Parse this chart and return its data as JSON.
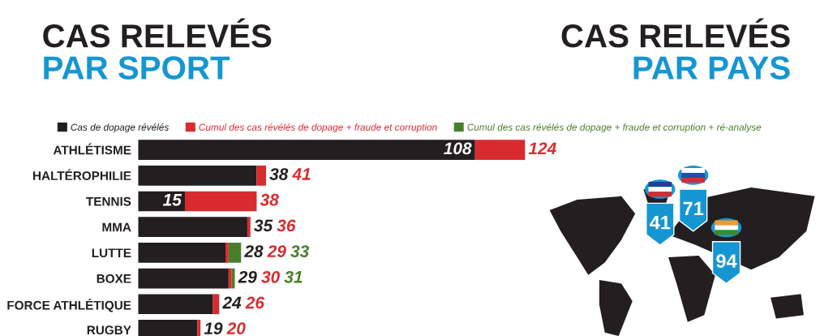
{
  "chart_data": [
    {
      "type": "bar",
      "orientation": "horizontal",
      "stacked": true,
      "title": "CAS RELEVÉS",
      "subtitle": "PAR SPORT",
      "legend": "top",
      "categories": [
        "ATHLÉTISME",
        "HALTÉROPHILIE",
        "TENNIS",
        "MMA",
        "LUTTE",
        "BOXE",
        "FORCE ATHLÉTIQUE",
        "RUGBY"
      ],
      "series": [
        {
          "name": "Cas de dopage révélés",
          "color": "#231f20",
          "values": [
            108,
            38,
            15,
            35,
            28,
            29,
            24,
            19
          ],
          "value_labels": [
            "108",
            "38",
            "15",
            "35",
            "28",
            "29",
            "24",
            "19"
          ]
        },
        {
          "name": "Cumul des cas révélés de dopage + fraude et corruption",
          "color": "#d92b2f",
          "values": [
            16,
            3,
            23,
            1,
            1,
            1,
            2,
            1
          ]
        },
        {
          "name": "Cumul des cas révélés de dopage + fraude et corruption + ré-analyse",
          "color": "#4a7f2a",
          "values": [
            null,
            null,
            null,
            null,
            4,
            1,
            null,
            null
          ]
        }
      ],
      "annotations": [
        {
          "text": "124",
          "x": 124,
          "y": "ATHLÉTISME"
        },
        {
          "text": "41",
          "x": 41,
          "y": "HALTÉROPHILIE"
        },
        {
          "text": "38",
          "x": 38,
          "y": "TENNIS"
        },
        {
          "text": "36",
          "x": 36,
          "y": "MMA"
        },
        {
          "text": "29",
          "x": 29,
          "y": "LUTTE"
        },
        {
          "text": "33",
          "x": 33,
          "y": "LUTTE"
        },
        {
          "text": "30",
          "x": 30,
          "y": "BOXE"
        },
        {
          "text": "31",
          "x": 31,
          "y": "BOXE"
        },
        {
          "text": "26",
          "x": 26,
          "y": "FORCE ATHLÉTIQUE"
        },
        {
          "text": "20",
          "x": 20,
          "y": "RUGBY"
        }
      ]
    },
    {
      "type": "other",
      "title": "CAS RELEVÉS",
      "subtitle": "PAR PAYS",
      "annotations": [
        "41",
        "71",
        "94"
      ]
    }
  ]
}
